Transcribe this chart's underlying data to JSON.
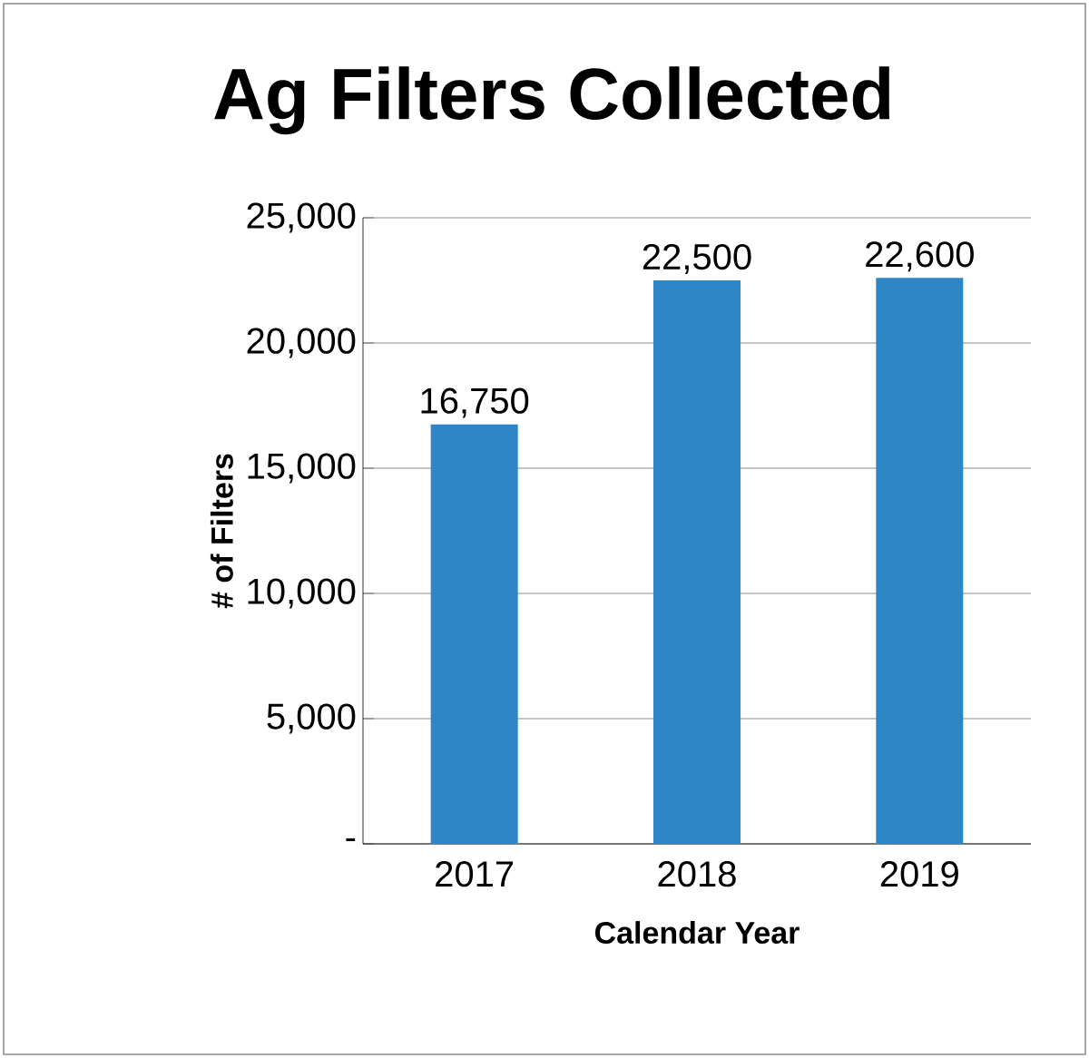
{
  "chart_data": {
    "type": "bar",
    "title": "Ag Filters Collected",
    "xlabel": "Calendar Year",
    "ylabel": "# of Filters",
    "categories": [
      "2017",
      "2018",
      "2019"
    ],
    "values": [
      16750,
      22500,
      22600
    ],
    "value_labels": [
      "16,750",
      "22,500",
      "22,600"
    ],
    "color": "#2e86c9",
    "ylim": [
      0,
      25000
    ],
    "yticks": [
      {
        "value": 0,
        "label": "-"
      },
      {
        "value": 5000,
        "label": "5,000"
      },
      {
        "value": 10000,
        "label": "10,000"
      },
      {
        "value": 15000,
        "label": "15,000"
      },
      {
        "value": 20000,
        "label": "20,000"
      },
      {
        "value": 25000,
        "label": "25,000"
      }
    ],
    "grid": "y"
  }
}
